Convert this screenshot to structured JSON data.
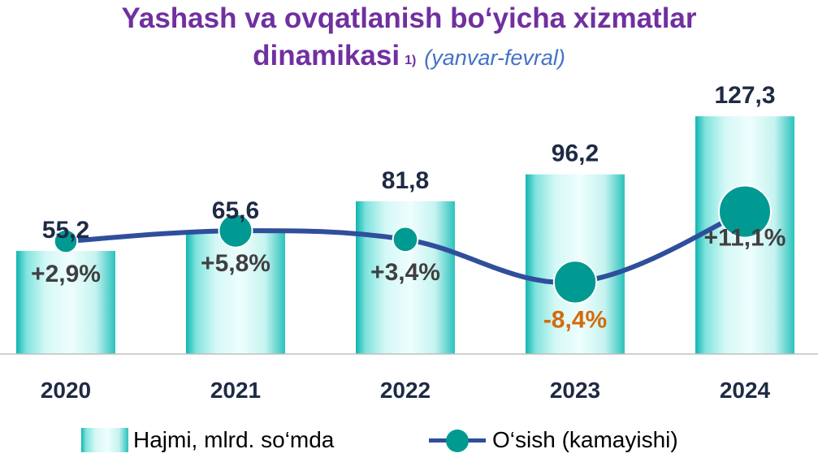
{
  "title": {
    "line1": "Yashash va ovqatlanish bo‘yicha xizmatlar",
    "line2": "dinamikasi",
    "footnote": "1)",
    "subtitle": "(yanvar-fevral)"
  },
  "colors": {
    "title": "#7030a0",
    "subtitle": "#4472c4",
    "bar_edge": "#0fb5b0",
    "bar_center": "#eefefd",
    "line": "#2f4f9b",
    "marker": "#009a93",
    "positive_label": "#404040",
    "negative_label": "#d36b0a"
  },
  "chart_data": {
    "type": "bar",
    "categories": [
      "2020",
      "2021",
      "2022",
      "2023",
      "2024"
    ],
    "series": [
      {
        "name": "Hajmi, mlrd. so‘mda",
        "type": "bar",
        "values": [
          55.2,
          65.6,
          81.8,
          96.2,
          127.3
        ],
        "labels": [
          "55,2",
          "65,6",
          "81,8",
          "96,2",
          "127,3"
        ]
      },
      {
        "name": "O‘sish (kamayishi)",
        "type": "line",
        "values": [
          2.9,
          5.8,
          3.4,
          -8.4,
          11.1
        ],
        "labels": [
          "+2,9%",
          "+5,8%",
          "+3,4%",
          "-8,4%",
          "+11,1%"
        ]
      }
    ],
    "legend_position": "bottom",
    "grid": false
  }
}
